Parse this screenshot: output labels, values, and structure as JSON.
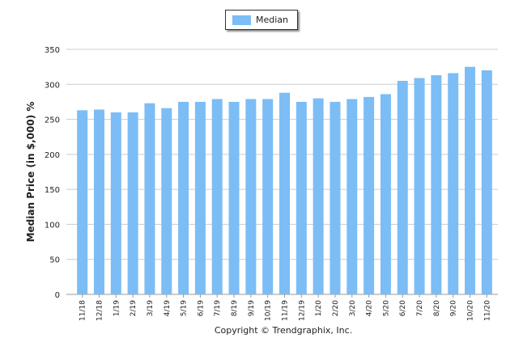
{
  "chart_data": {
    "type": "bar",
    "title": "",
    "xlabel": "",
    "ylabel": "Median Price (in $,000) %",
    "ylim": [
      0,
      350
    ],
    "yticks": [
      0,
      50,
      100,
      150,
      200,
      250,
      300,
      350
    ],
    "grid": true,
    "legend_position": "top-center",
    "categories": [
      "11/18",
      "12/18",
      "1/19",
      "2/19",
      "3/19",
      "4/19",
      "5/19",
      "6/19",
      "7/19",
      "8/19",
      "9/19",
      "10/19",
      "11/19",
      "12/19",
      "1/20",
      "2/20",
      "3/20",
      "4/20",
      "5/20",
      "6/20",
      "7/20",
      "8/20",
      "9/20",
      "10/20",
      "11/20"
    ],
    "series": [
      {
        "name": "Median",
        "color": "#7cbdf5",
        "values": [
          263,
          264,
          260,
          260,
          273,
          266,
          275,
          275,
          279,
          275,
          279,
          279,
          288,
          275,
          280,
          275,
          279,
          282,
          286,
          305,
          309,
          313,
          316,
          325,
          320
        ]
      }
    ]
  },
  "footer": {
    "copyright": "Copyright © Trendgraphix, Inc."
  }
}
